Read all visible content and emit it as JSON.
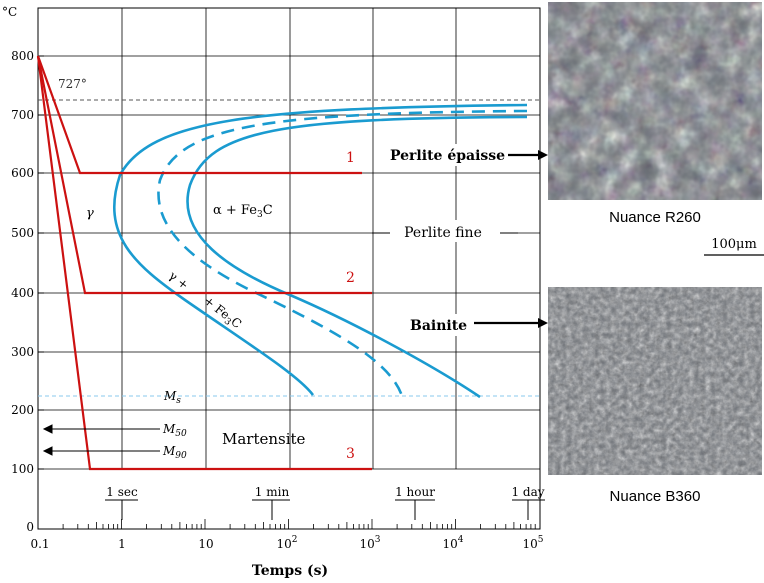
{
  "diagram": {
    "y_unit": "°C",
    "x_axis_title": "Temps (s)",
    "y_ticks": [
      "0",
      "100",
      "200",
      "300",
      "400",
      "500",
      "600",
      "700",
      "800"
    ],
    "x_ticks": [
      "0.1",
      "1",
      "10",
      "10",
      "10",
      "10",
      "10"
    ],
    "x_tick_exponents": [
      "",
      "",
      "",
      "2",
      "3",
      "4",
      "5"
    ],
    "time_markers": [
      "1 sec",
      "1 min",
      "1 hour",
      "1 day"
    ],
    "temp_727": "727°",
    "ms_label": "M",
    "ms_sub": "s",
    "m50_label": "M",
    "m50_sub": "50",
    "m90_label": "M",
    "m90_sub": "90",
    "phase_gamma": "γ",
    "phase_alpha": "α  + Fe",
    "phase_alpha_sub": "3",
    "phase_alpha_tail": "C",
    "bainite_band_1": "γ  +",
    "bainite_band_2": "+ Fe",
    "bainite_band_sub": "3",
    "bainite_band_tail": "C",
    "martensite": "Martensite",
    "perlite_fine": "Perlite fine",
    "perlite_epaisse": "Perlite épaisse",
    "bainite": "Bainite",
    "cooling_labels": [
      "1",
      "2",
      "3"
    ],
    "scale_bar": "100μm",
    "nuance_top": "Nuance R260",
    "nuance_bottom": "Nuance B360",
    "colors": {
      "c_curve": "#1a9bd0",
      "cooling": "#cc1111",
      "dashed_ms": "#88c8ee",
      "grid": "#000000"
    }
  }
}
